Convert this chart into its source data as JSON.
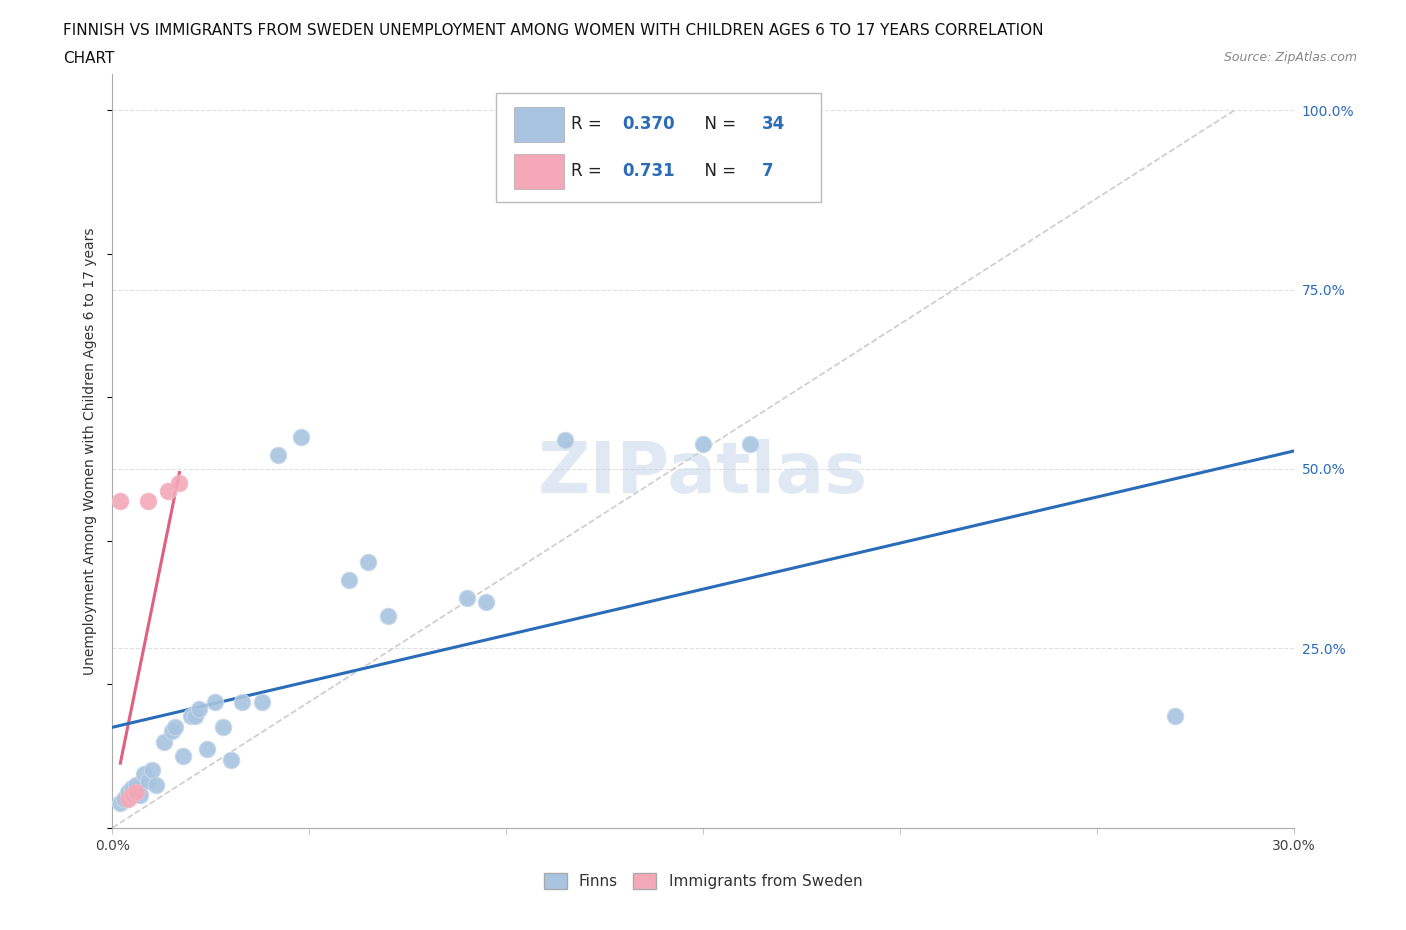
{
  "title_line1": "FINNISH VS IMMIGRANTS FROM SWEDEN UNEMPLOYMENT AMONG WOMEN WITH CHILDREN AGES 6 TO 17 YEARS CORRELATION",
  "title_line2": "CHART",
  "source_text": "Source: ZipAtlas.com",
  "ylabel": "Unemployment Among Women with Children Ages 6 to 17 years",
  "watermark": "ZIPatlas",
  "xlim": [
    0.0,
    0.3
  ],
  "ylim": [
    0.0,
    1.05
  ],
  "xticks": [
    0.0,
    0.05,
    0.1,
    0.15,
    0.2,
    0.25,
    0.3
  ],
  "xticklabels": [
    "0.0%",
    "",
    "",
    "",
    "",
    "",
    "30.0%"
  ],
  "yticks_right": [
    0.0,
    0.25,
    0.5,
    0.75,
    1.0
  ],
  "yticklabels_right": [
    "",
    "25.0%",
    "50.0%",
    "75.0%",
    "100.0%"
  ],
  "bg_color": "#ffffff",
  "grid_color": "#e0e0e0",
  "finns_color": "#a8c4e0",
  "immigrants_color": "#f4a8b8",
  "finns_line_color": "#2b6cb8",
  "immigrants_line_color": "#e06080",
  "finns_R": 0.37,
  "finns_N": 34,
  "immigrants_R": 0.731,
  "immigrants_N": 7,
  "legend_label_finns": "Finns",
  "legend_label_immigrants": "Immigrants from Sweden",
  "finns_scatter_x": [
    0.002,
    0.003,
    0.004,
    0.005,
    0.006,
    0.007,
    0.008,
    0.009,
    0.01,
    0.011,
    0.013,
    0.015,
    0.016,
    0.018,
    0.02,
    0.021,
    0.022,
    0.024,
    0.026,
    0.028,
    0.03,
    0.033,
    0.038,
    0.042,
    0.048,
    0.06,
    0.065,
    0.07,
    0.09,
    0.095,
    0.115,
    0.15,
    0.162,
    0.27
  ],
  "finns_scatter_y": [
    0.035,
    0.04,
    0.05,
    0.055,
    0.06,
    0.045,
    0.075,
    0.065,
    0.08,
    0.06,
    0.12,
    0.135,
    0.14,
    0.1,
    0.155,
    0.155,
    0.165,
    0.11,
    0.175,
    0.14,
    0.095,
    0.175,
    0.175,
    0.52,
    0.545,
    0.345,
    0.37,
    0.295,
    0.32,
    0.315,
    0.54,
    0.535,
    0.535,
    0.155
  ],
  "immigrants_scatter_x": [
    0.002,
    0.004,
    0.005,
    0.006,
    0.009,
    0.014,
    0.017
  ],
  "immigrants_scatter_y": [
    0.455,
    0.04,
    0.045,
    0.05,
    0.455,
    0.47,
    0.48
  ],
  "finns_line_x": [
    0.0,
    0.3
  ],
  "finns_line_y": [
    0.14,
    0.525
  ],
  "immigrants_line_x": [
    0.002,
    0.017
  ],
  "immigrants_line_y": [
    0.09,
    0.495
  ],
  "trend_line_x": [
    0.0,
    0.285
  ],
  "trend_line_y": [
    0.0,
    1.0
  ]
}
